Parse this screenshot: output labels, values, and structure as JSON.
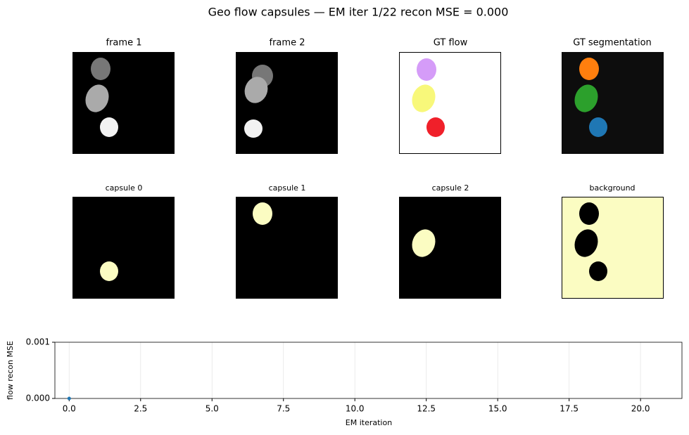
{
  "title": "Geo flow capsules — EM iter 1/22  recon MSE = 0.000",
  "panels": [
    {
      "title": "frame 1"
    },
    {
      "title": "frame 2"
    },
    {
      "title": "GT flow"
    },
    {
      "title": "GT segmentation"
    },
    {
      "title": "capsule 0"
    },
    {
      "title": "capsule 1"
    },
    {
      "title": "capsule 2"
    },
    {
      "title": "background"
    }
  ],
  "chart_data": {
    "type": "line",
    "xlabel": "EM iteration",
    "ylabel": "flow recon MSE",
    "x": [
      0
    ],
    "series": [
      {
        "color": "#1f77b4",
        "values": [
          0
        ]
      }
    ],
    "xlim": [
      -0.5,
      21.45
    ],
    "ylim": [
      0,
      0.001
    ],
    "xticks": [
      {
        "value": 0,
        "label": "0.0"
      },
      2.5,
      {
        "value": 5,
        "label": "5.0"
      },
      7.5,
      {
        "value": 10,
        "label": "10.0"
      },
      12.5,
      {
        "value": 15,
        "label": "15.0"
      },
      17.5,
      {
        "value": 20,
        "label": "20.0"
      }
    ],
    "yticks": [
      {
        "value": 0,
        "label": "0.000"
      },
      {
        "value": 0.001,
        "label": "0.001"
      }
    ],
    "grid": "x"
  }
}
